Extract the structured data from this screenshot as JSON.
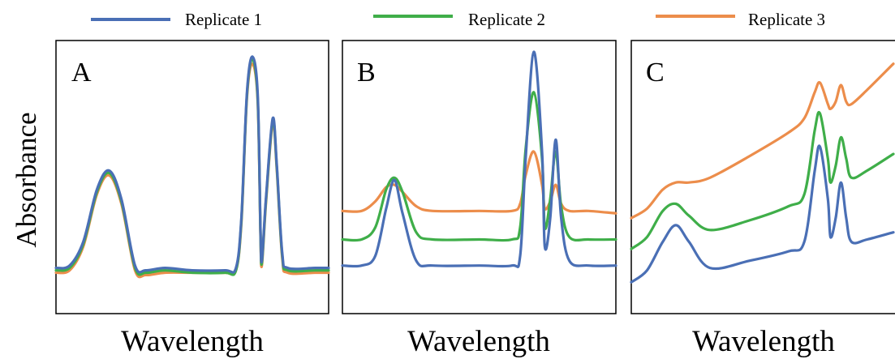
{
  "chart_data": {
    "type": "line",
    "ylabel": "Absorbance",
    "legend": {
      "placement": "top",
      "entries": [
        {
          "label": "Replicate 1",
          "color": "#4a6fb5"
        },
        {
          "label": "Replicate 2",
          "color": "#3fae49"
        },
        {
          "label": "Replicate 3",
          "color": "#ec8d4b"
        }
      ]
    },
    "panels": [
      {
        "label": "A",
        "xlabel": "Wavelength",
        "series": [
          {
            "legend_ref": 0,
            "points": [
              [
                0,
                0.09
              ],
              [
                0.05,
                0.1
              ],
              [
                0.1,
                0.2
              ],
              [
                0.15,
                0.42
              ],
              [
                0.195,
                0.5
              ],
              [
                0.24,
                0.38
              ],
              [
                0.29,
                0.1
              ],
              [
                0.33,
                0.08
              ],
              [
                0.4,
                0.09
              ],
              [
                0.5,
                0.08
              ],
              [
                0.62,
                0.08
              ],
              [
                0.66,
                0.09
              ],
              [
                0.68,
                0.3
              ],
              [
                0.7,
                0.82
              ],
              [
                0.72,
                0.98
              ],
              [
                0.74,
                0.82
              ],
              [
                0.75,
                0.25
              ],
              [
                0.755,
                0.12
              ],
              [
                0.77,
                0.38
              ],
              [
                0.795,
                0.72
              ],
              [
                0.81,
                0.52
              ],
              [
                0.83,
                0.15
              ],
              [
                0.85,
                0.09
              ],
              [
                0.95,
                0.09
              ],
              [
                1,
                0.09
              ]
            ]
          },
          {
            "legend_ref": 1,
            "points": [
              [
                0,
                0.08
              ],
              [
                0.05,
                0.09
              ],
              [
                0.1,
                0.19
              ],
              [
                0.15,
                0.41
              ],
              [
                0.195,
                0.49
              ],
              [
                0.24,
                0.37
              ],
              [
                0.29,
                0.09
              ],
              [
                0.33,
                0.07
              ],
              [
                0.4,
                0.08
              ],
              [
                0.5,
                0.07
              ],
              [
                0.62,
                0.07
              ],
              [
                0.66,
                0.08
              ],
              [
                0.68,
                0.29
              ],
              [
                0.7,
                0.81
              ],
              [
                0.72,
                0.97
              ],
              [
                0.74,
                0.8
              ],
              [
                0.75,
                0.24
              ],
              [
                0.755,
                0.11
              ],
              [
                0.77,
                0.37
              ],
              [
                0.795,
                0.71
              ],
              [
                0.81,
                0.51
              ],
              [
                0.83,
                0.14
              ],
              [
                0.85,
                0.08
              ],
              [
                0.95,
                0.08
              ],
              [
                1,
                0.08
              ]
            ]
          },
          {
            "legend_ref": 2,
            "points": [
              [
                0,
                0.07
              ],
              [
                0.05,
                0.08
              ],
              [
                0.1,
                0.18
              ],
              [
                0.15,
                0.4
              ],
              [
                0.195,
                0.48
              ],
              [
                0.24,
                0.36
              ],
              [
                0.29,
                0.08
              ],
              [
                0.33,
                0.06
              ],
              [
                0.4,
                0.07
              ],
              [
                0.5,
                0.07
              ],
              [
                0.62,
                0.07
              ],
              [
                0.66,
                0.08
              ],
              [
                0.68,
                0.28
              ],
              [
                0.7,
                0.8
              ],
              [
                0.72,
                0.95
              ],
              [
                0.74,
                0.79
              ],
              [
                0.75,
                0.23
              ],
              [
                0.755,
                0.1
              ],
              [
                0.77,
                0.36
              ],
              [
                0.795,
                0.7
              ],
              [
                0.81,
                0.5
              ],
              [
                0.83,
                0.13
              ],
              [
                0.85,
                0.07
              ],
              [
                0.95,
                0.07
              ],
              [
                1,
                0.07
              ]
            ]
          }
        ]
      },
      {
        "label": "B",
        "xlabel": "Wavelength",
        "series": [
          {
            "legend_ref": 0,
            "points": [
              [
                0,
                0.1
              ],
              [
                0.07,
                0.1
              ],
              [
                0.12,
                0.14
              ],
              [
                0.16,
                0.34
              ],
              [
                0.19,
                0.46
              ],
              [
                0.22,
                0.32
              ],
              [
                0.27,
                0.12
              ],
              [
                0.33,
                0.1
              ],
              [
                0.5,
                0.1
              ],
              [
                0.62,
                0.1
              ],
              [
                0.65,
                0.14
              ],
              [
                0.67,
                0.55
              ],
              [
                0.7,
                1.0
              ],
              [
                0.73,
                0.58
              ],
              [
                0.74,
                0.18
              ],
              [
                0.76,
                0.3
              ],
              [
                0.78,
                0.63
              ],
              [
                0.8,
                0.3
              ],
              [
                0.83,
                0.12
              ],
              [
                0.9,
                0.1
              ],
              [
                1,
                0.1
              ]
            ]
          },
          {
            "legend_ref": 1,
            "points": [
              [
                0,
                0.21
              ],
              [
                0.07,
                0.21
              ],
              [
                0.12,
                0.26
              ],
              [
                0.16,
                0.42
              ],
              [
                0.19,
                0.47
              ],
              [
                0.22,
                0.41
              ],
              [
                0.27,
                0.24
              ],
              [
                0.33,
                0.21
              ],
              [
                0.5,
                0.21
              ],
              [
                0.62,
                0.21
              ],
              [
                0.65,
                0.26
              ],
              [
                0.67,
                0.59
              ],
              [
                0.7,
                0.83
              ],
              [
                0.73,
                0.55
              ],
              [
                0.74,
                0.26
              ],
              [
                0.76,
                0.38
              ],
              [
                0.78,
                0.58
              ],
              [
                0.8,
                0.35
              ],
              [
                0.83,
                0.22
              ],
              [
                0.9,
                0.21
              ],
              [
                1,
                0.21
              ]
            ]
          },
          {
            "legend_ref": 2,
            "points": [
              [
                0,
                0.33
              ],
              [
                0.07,
                0.33
              ],
              [
                0.12,
                0.37
              ],
              [
                0.16,
                0.43
              ],
              [
                0.19,
                0.44
              ],
              [
                0.22,
                0.41
              ],
              [
                0.27,
                0.35
              ],
              [
                0.33,
                0.33
              ],
              [
                0.5,
                0.33
              ],
              [
                0.62,
                0.33
              ],
              [
                0.65,
                0.36
              ],
              [
                0.67,
                0.48
              ],
              [
                0.7,
                0.58
              ],
              [
                0.73,
                0.44
              ],
              [
                0.74,
                0.34
              ],
              [
                0.76,
                0.37
              ],
              [
                0.78,
                0.44
              ],
              [
                0.8,
                0.36
              ],
              [
                0.83,
                0.33
              ],
              [
                0.9,
                0.33
              ],
              [
                1,
                0.32
              ]
            ]
          }
        ]
      },
      {
        "label": "C",
        "xlabel": "Wavelength",
        "series": [
          {
            "legend_ref": 0,
            "points": [
              [
                0,
                0.03
              ],
              [
                0.06,
                0.08
              ],
              [
                0.12,
                0.2
              ],
              [
                0.17,
                0.27
              ],
              [
                0.22,
                0.2
              ],
              [
                0.3,
                0.09
              ],
              [
                0.45,
                0.12
              ],
              [
                0.6,
                0.16
              ],
              [
                0.66,
                0.2
              ],
              [
                0.7,
                0.5
              ],
              [
                0.72,
                0.6
              ],
              [
                0.75,
                0.38
              ],
              [
                0.76,
                0.22
              ],
              [
                0.78,
                0.3
              ],
              [
                0.8,
                0.45
              ],
              [
                0.82,
                0.3
              ],
              [
                0.84,
                0.2
              ],
              [
                0.9,
                0.21
              ],
              [
                1,
                0.24
              ]
            ]
          },
          {
            "legend_ref": 1,
            "points": [
              [
                0,
                0.17
              ],
              [
                0.06,
                0.22
              ],
              [
                0.12,
                0.33
              ],
              [
                0.17,
                0.36
              ],
              [
                0.22,
                0.31
              ],
              [
                0.3,
                0.25
              ],
              [
                0.45,
                0.29
              ],
              [
                0.6,
                0.35
              ],
              [
                0.66,
                0.4
              ],
              [
                0.7,
                0.67
              ],
              [
                0.72,
                0.74
              ],
              [
                0.75,
                0.55
              ],
              [
                0.76,
                0.45
              ],
              [
                0.78,
                0.52
              ],
              [
                0.8,
                0.64
              ],
              [
                0.82,
                0.55
              ],
              [
                0.84,
                0.47
              ],
              [
                0.9,
                0.5
              ],
              [
                1,
                0.57
              ]
            ]
          },
          {
            "legend_ref": 2,
            "points": [
              [
                0,
                0.3
              ],
              [
                0.06,
                0.34
              ],
              [
                0.12,
                0.42
              ],
              [
                0.17,
                0.45
              ],
              [
                0.22,
                0.45
              ],
              [
                0.3,
                0.47
              ],
              [
                0.45,
                0.56
              ],
              [
                0.6,
                0.66
              ],
              [
                0.66,
                0.72
              ],
              [
                0.7,
                0.83
              ],
              [
                0.72,
                0.87
              ],
              [
                0.75,
                0.78
              ],
              [
                0.76,
                0.76
              ],
              [
                0.78,
                0.79
              ],
              [
                0.8,
                0.86
              ],
              [
                0.82,
                0.79
              ],
              [
                0.84,
                0.78
              ],
              [
                0.9,
                0.84
              ],
              [
                1,
                0.95
              ]
            ]
          }
        ]
      }
    ]
  }
}
